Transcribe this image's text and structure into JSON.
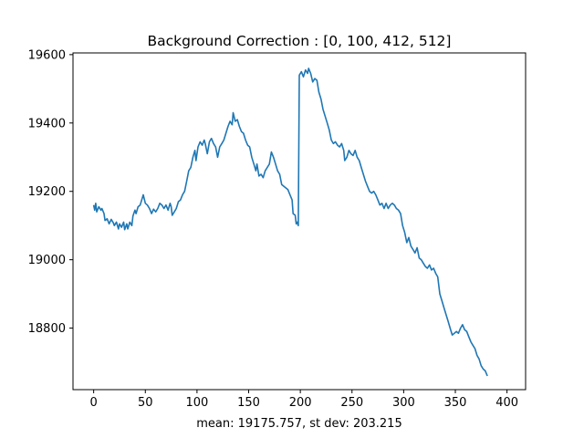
{
  "chart_data": {
    "type": "line",
    "title": "Background Correction : [0, 100, 412, 512]",
    "xlabel": "mean: 19175.757, st dev: 203.215",
    "ylabel": "",
    "xlim": [
      -20,
      418
    ],
    "ylim": [
      18620,
      19605
    ],
    "xticks": [
      0,
      50,
      100,
      150,
      200,
      250,
      300,
      350,
      400
    ],
    "yticks": [
      18800,
      19000,
      19200,
      19400,
      19600
    ],
    "grid": false,
    "color": "#1f77b4",
    "series": [
      {
        "points": [
          [
            0,
            19160
          ],
          [
            1,
            19145
          ],
          [
            2,
            19165
          ],
          [
            3,
            19140
          ],
          [
            5,
            19155
          ],
          [
            7,
            19145
          ],
          [
            8,
            19150
          ],
          [
            10,
            19135
          ],
          [
            11,
            19115
          ],
          [
            13,
            19120
          ],
          [
            15,
            19105
          ],
          [
            17,
            19118
          ],
          [
            19,
            19108
          ],
          [
            20,
            19100
          ],
          [
            22,
            19110
          ],
          [
            24,
            19090
          ],
          [
            25,
            19105
          ],
          [
            27,
            19095
          ],
          [
            29,
            19110
          ],
          [
            30,
            19088
          ],
          [
            32,
            19105
          ],
          [
            33,
            19090
          ],
          [
            35,
            19110
          ],
          [
            37,
            19100
          ],
          [
            38,
            19128
          ],
          [
            40,
            19145
          ],
          [
            41,
            19135
          ],
          [
            43,
            19155
          ],
          [
            45,
            19160
          ],
          [
            47,
            19180
          ],
          [
            48,
            19190
          ],
          [
            50,
            19165
          ],
          [
            52,
            19160
          ],
          [
            54,
            19150
          ],
          [
            56,
            19135
          ],
          [
            58,
            19148
          ],
          [
            60,
            19140
          ],
          [
            62,
            19150
          ],
          [
            64,
            19165
          ],
          [
            66,
            19160
          ],
          [
            68,
            19150
          ],
          [
            70,
            19160
          ],
          [
            72,
            19145
          ],
          [
            74,
            19165
          ],
          [
            75,
            19155
          ],
          [
            76,
            19130
          ],
          [
            78,
            19140
          ],
          [
            80,
            19150
          ],
          [
            82,
            19170
          ],
          [
            84,
            19175
          ],
          [
            86,
            19190
          ],
          [
            88,
            19200
          ],
          [
            90,
            19230
          ],
          [
            92,
            19260
          ],
          [
            94,
            19270
          ],
          [
            96,
            19300
          ],
          [
            98,
            19320
          ],
          [
            99,
            19290
          ],
          [
            101,
            19330
          ],
          [
            103,
            19345
          ],
          [
            105,
            19335
          ],
          [
            107,
            19350
          ],
          [
            108,
            19340
          ],
          [
            110,
            19310
          ],
          [
            112,
            19345
          ],
          [
            114,
            19355
          ],
          [
            116,
            19340
          ],
          [
            118,
            19330
          ],
          [
            120,
            19300
          ],
          [
            122,
            19330
          ],
          [
            124,
            19340
          ],
          [
            126,
            19350
          ],
          [
            128,
            19370
          ],
          [
            130,
            19390
          ],
          [
            132,
            19405
          ],
          [
            134,
            19395
          ],
          [
            135,
            19430
          ],
          [
            137,
            19405
          ],
          [
            139,
            19410
          ],
          [
            141,
            19390
          ],
          [
            143,
            19375
          ],
          [
            145,
            19370
          ],
          [
            147,
            19350
          ],
          [
            149,
            19335
          ],
          [
            151,
            19330
          ],
          [
            153,
            19300
          ],
          [
            155,
            19280
          ],
          [
            157,
            19260
          ],
          [
            158,
            19280
          ],
          [
            160,
            19245
          ],
          [
            162,
            19250
          ],
          [
            164,
            19240
          ],
          [
            166,
            19260
          ],
          [
            168,
            19270
          ],
          [
            170,
            19280
          ],
          [
            172,
            19315
          ],
          [
            174,
            19300
          ],
          [
            176,
            19280
          ],
          [
            178,
            19260
          ],
          [
            180,
            19250
          ],
          [
            182,
            19220
          ],
          [
            184,
            19215
          ],
          [
            186,
            19210
          ],
          [
            188,
            19205
          ],
          [
            190,
            19190
          ],
          [
            192,
            19175
          ],
          [
            193,
            19135
          ],
          [
            195,
            19130
          ],
          [
            196,
            19105
          ],
          [
            197,
            19110
          ],
          [
            198,
            19100
          ],
          [
            199,
            19540
          ],
          [
            201,
            19550
          ],
          [
            203,
            19535
          ],
          [
            205,
            19555
          ],
          [
            207,
            19545
          ],
          [
            208,
            19560
          ],
          [
            210,
            19545
          ],
          [
            212,
            19520
          ],
          [
            214,
            19530
          ],
          [
            216,
            19525
          ],
          [
            218,
            19490
          ],
          [
            220,
            19470
          ],
          [
            222,
            19440
          ],
          [
            224,
            19420
          ],
          [
            226,
            19400
          ],
          [
            228,
            19380
          ],
          [
            230,
            19350
          ],
          [
            232,
            19340
          ],
          [
            234,
            19345
          ],
          [
            236,
            19335
          ],
          [
            238,
            19330
          ],
          [
            240,
            19340
          ],
          [
            242,
            19320
          ],
          [
            243,
            19290
          ],
          [
            245,
            19300
          ],
          [
            247,
            19320
          ],
          [
            249,
            19310
          ],
          [
            251,
            19305
          ],
          [
            253,
            19320
          ],
          [
            255,
            19300
          ],
          [
            257,
            19290
          ],
          [
            259,
            19270
          ],
          [
            261,
            19250
          ],
          [
            263,
            19230
          ],
          [
            265,
            19215
          ],
          [
            267,
            19200
          ],
          [
            269,
            19195
          ],
          [
            271,
            19200
          ],
          [
            273,
            19190
          ],
          [
            275,
            19175
          ],
          [
            277,
            19160
          ],
          [
            279,
            19165
          ],
          [
            281,
            19150
          ],
          [
            283,
            19165
          ],
          [
            285,
            19150
          ],
          [
            287,
            19160
          ],
          [
            289,
            19165
          ],
          [
            291,
            19160
          ],
          [
            293,
            19150
          ],
          [
            295,
            19145
          ],
          [
            297,
            19135
          ],
          [
            299,
            19100
          ],
          [
            301,
            19080
          ],
          [
            303,
            19050
          ],
          [
            305,
            19065
          ],
          [
            307,
            19040
          ],
          [
            309,
            19030
          ],
          [
            311,
            19020
          ],
          [
            313,
            19035
          ],
          [
            315,
            19005
          ],
          [
            317,
            19000
          ],
          [
            319,
            18990
          ],
          [
            321,
            18980
          ],
          [
            323,
            18975
          ],
          [
            325,
            18985
          ],
          [
            327,
            18970
          ],
          [
            329,
            18975
          ],
          [
            331,
            18960
          ],
          [
            333,
            18950
          ],
          [
            335,
            18900
          ],
          [
            337,
            18880
          ],
          [
            339,
            18860
          ],
          [
            341,
            18840
          ],
          [
            343,
            18820
          ],
          [
            345,
            18800
          ],
          [
            347,
            18780
          ],
          [
            349,
            18785
          ],
          [
            351,
            18790
          ],
          [
            353,
            18785
          ],
          [
            355,
            18800
          ],
          [
            357,
            18810
          ],
          [
            359,
            18795
          ],
          [
            361,
            18790
          ],
          [
            363,
            18775
          ],
          [
            365,
            18760
          ],
          [
            367,
            18750
          ],
          [
            369,
            18740
          ],
          [
            371,
            18720
          ],
          [
            373,
            18710
          ],
          [
            375,
            18690
          ],
          [
            377,
            18680
          ],
          [
            379,
            18675
          ],
          [
            381,
            18660
          ]
        ]
      }
    ]
  }
}
